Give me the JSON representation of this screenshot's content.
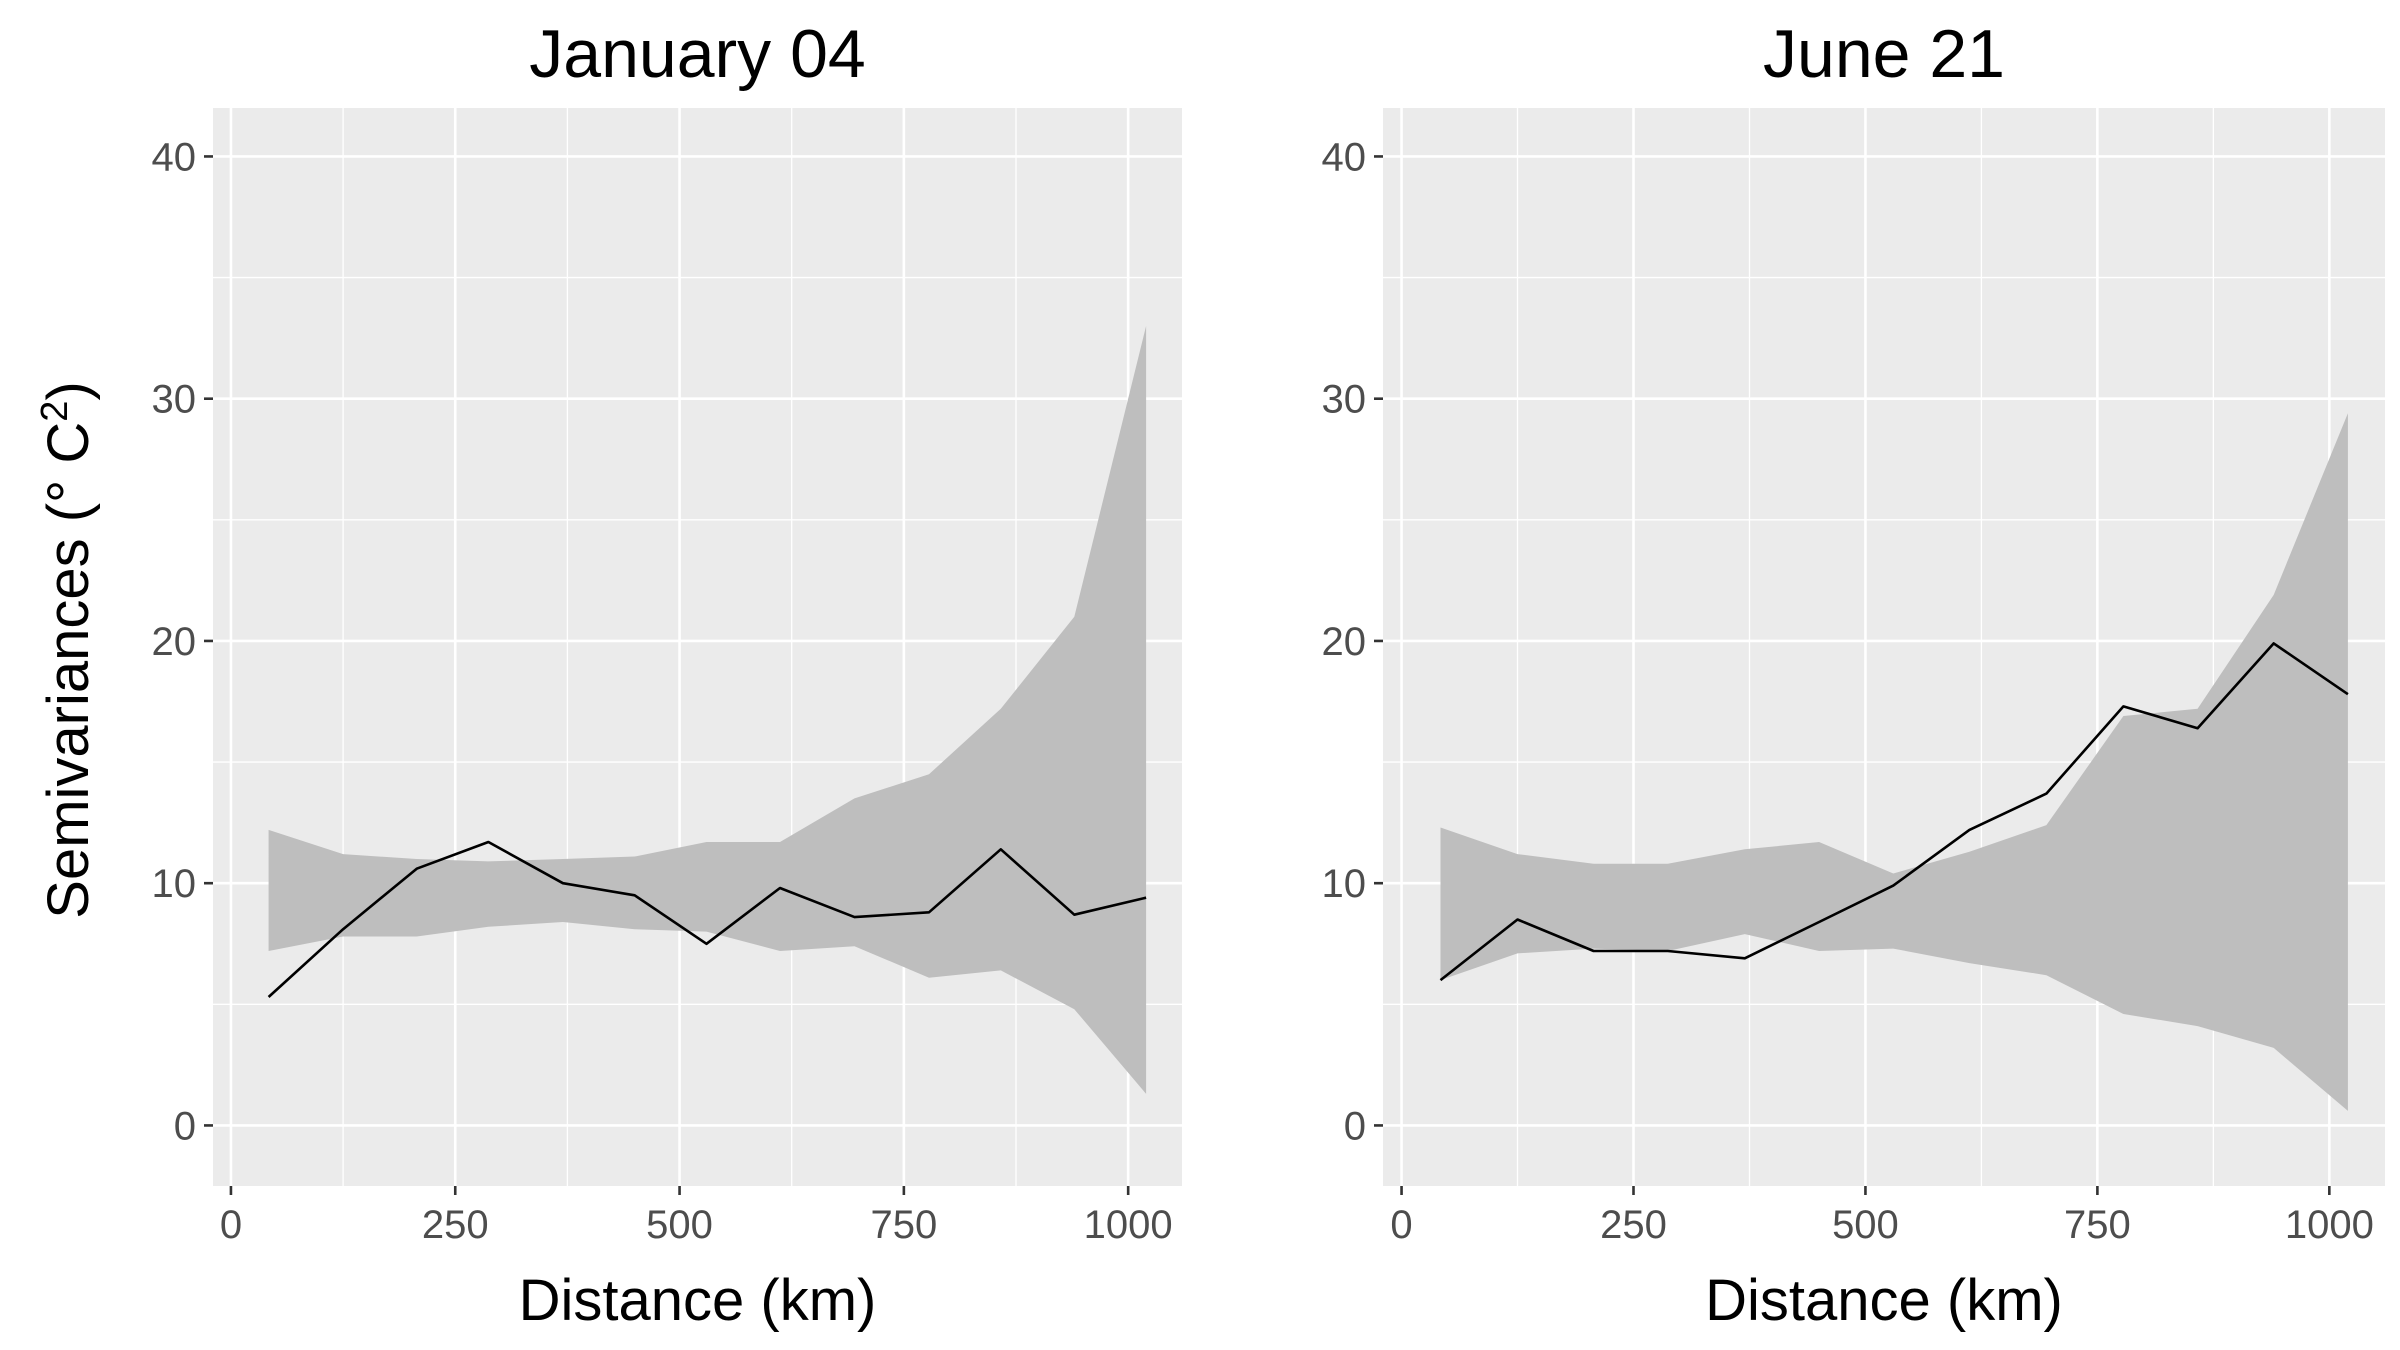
{
  "figure": {
    "ylabel": "Semivariances (° C²)",
    "ylabel_main": "Semivariances (",
    "ylabel_unit": "° C",
    "ylabel_sup": "2",
    "ylabel_close": ")"
  },
  "style": {
    "panel_background": "#ebebeb",
    "grid_color": "#ffffff",
    "band_color": "#bebebe",
    "line_color": "#000000",
    "tick_label_color": "#4d4d4d"
  },
  "chart_data": [
    {
      "type": "line",
      "title": "January 04",
      "xlabel": "Distance (km)",
      "ylabel": "Semivariances (° C²)",
      "xlim": [
        -20,
        1060
      ],
      "ylim": [
        -2.5,
        42
      ],
      "xticks": [
        0,
        250,
        500,
        750,
        1000
      ],
      "xtick_labels": [
        "0",
        "250",
        "500",
        "750",
        "1000"
      ],
      "yticks": [
        0,
        10,
        20,
        30,
        40
      ],
      "ytick_labels": [
        "0",
        "10",
        "20",
        "30",
        "40"
      ],
      "grid": true,
      "x": [
        42,
        125,
        207,
        287,
        370,
        450,
        530,
        612,
        695,
        778,
        858,
        940,
        1020
      ],
      "series": [
        {
          "values": [
            5.3,
            8.1,
            10.6,
            11.7,
            10.0,
            9.5,
            7.5,
            9.8,
            8.6,
            8.8,
            11.4,
            8.7,
            9.4
          ]
        }
      ],
      "band": {
        "lower": [
          7.2,
          7.8,
          7.8,
          8.2,
          8.4,
          8.1,
          8.0,
          7.2,
          7.4,
          6.1,
          6.4,
          4.8,
          1.3
        ],
        "upper": [
          12.2,
          11.2,
          11.0,
          10.9,
          11.0,
          11.1,
          11.7,
          11.7,
          13.5,
          14.5,
          17.2,
          21.0,
          33.0
        ]
      }
    },
    {
      "type": "line",
      "title": "June 21",
      "xlabel": "Distance (km)",
      "ylabel": "",
      "xlim": [
        -20,
        1060
      ],
      "ylim": [
        -2.5,
        42
      ],
      "xticks": [
        0,
        250,
        500,
        750,
        1000
      ],
      "xtick_labels": [
        "0",
        "250",
        "500",
        "750",
        "1000"
      ],
      "yticks": [
        0,
        10,
        20,
        30,
        40
      ],
      "ytick_labels": [
        "0",
        "10",
        "20",
        "30",
        "40"
      ],
      "grid": true,
      "x": [
        42,
        125,
        207,
        287,
        370,
        450,
        530,
        612,
        695,
        778,
        858,
        940,
        1020
      ],
      "series": [
        {
          "values": [
            6.0,
            8.5,
            7.2,
            7.2,
            6.9,
            8.4,
            9.9,
            12.2,
            13.7,
            17.3,
            16.4,
            19.9,
            17.8
          ]
        }
      ],
      "band": {
        "lower": [
          6.0,
          7.1,
          7.3,
          7.2,
          7.9,
          7.2,
          7.3,
          6.7,
          6.2,
          4.6,
          4.1,
          3.2,
          0.6
        ],
        "upper": [
          12.3,
          11.2,
          10.8,
          10.8,
          11.4,
          11.7,
          10.4,
          11.3,
          12.4,
          16.9,
          17.2,
          21.9,
          29.4
        ]
      }
    }
  ]
}
